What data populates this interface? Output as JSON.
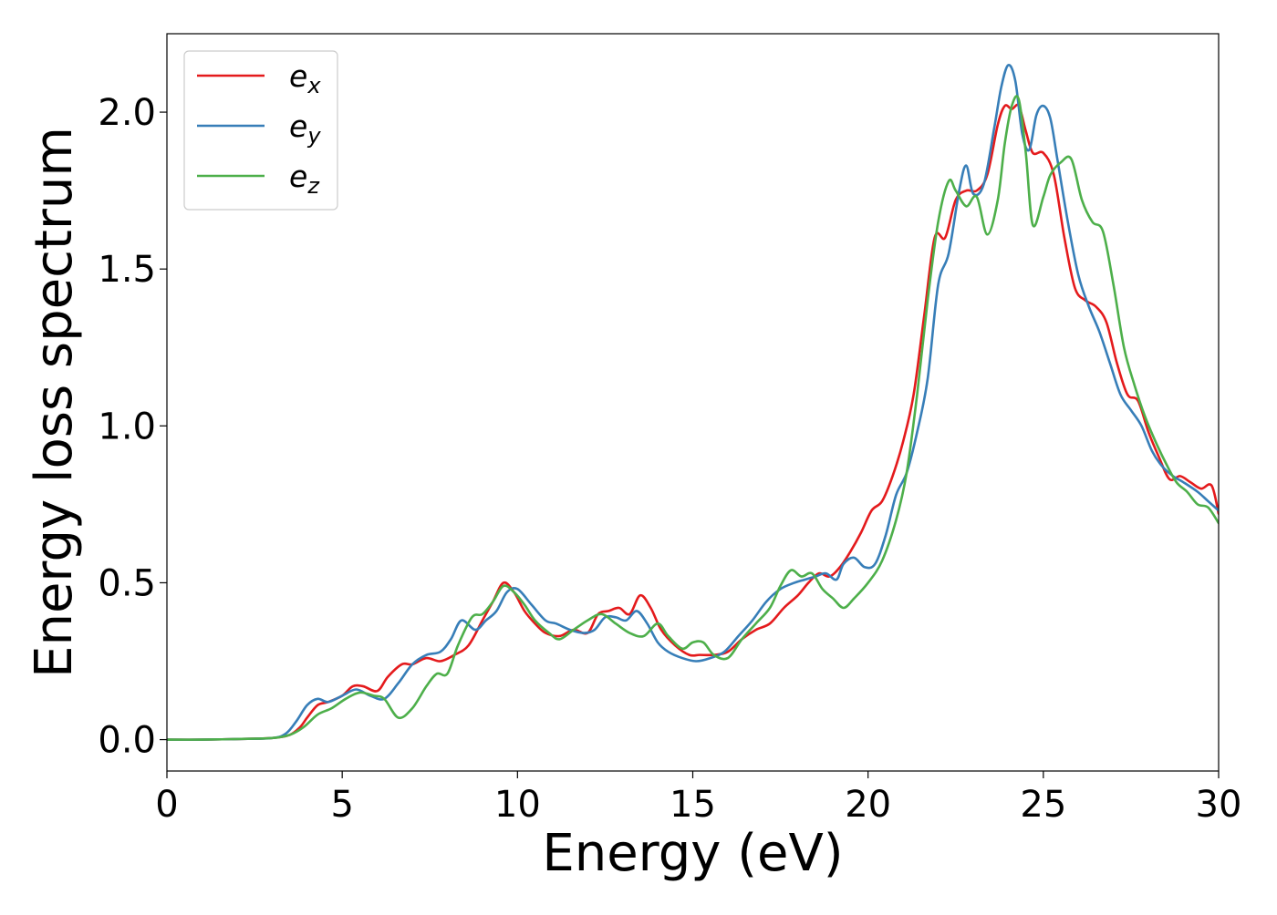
{
  "chart_data": {
    "type": "line",
    "title": "",
    "xlabel": "Energy (eV)",
    "ylabel": "Energy loss spectrum",
    "xlim": [
      0,
      30
    ],
    "ylim": [
      -0.1,
      2.25
    ],
    "xticks": [
      0,
      5,
      10,
      15,
      20,
      25,
      30
    ],
    "xtick_labels": [
      "0",
      "5",
      "10",
      "15",
      "20",
      "25",
      "30"
    ],
    "yticks": [
      0.0,
      0.5,
      1.0,
      1.5,
      2.0
    ],
    "ytick_labels": [
      "0.0",
      "0.5",
      "1.0",
      "1.5",
      "2.0"
    ],
    "grid": false,
    "legend_position": "top-left",
    "series": [
      {
        "name": "e_x",
        "label_base": "e",
        "label_sub": "x",
        "color": "#e41a1c",
        "x": [
          0,
          1,
          2,
          3,
          3.5,
          3.8,
          4.0,
          4.3,
          4.6,
          5.0,
          5.3,
          5.6,
          6.0,
          6.3,
          6.7,
          7.0,
          7.4,
          7.8,
          8.2,
          8.6,
          9.0,
          9.3,
          9.6,
          9.9,
          10.2,
          10.5,
          10.8,
          11.2,
          11.6,
          12.0,
          12.3,
          12.6,
          12.9,
          13.2,
          13.5,
          13.8,
          14.1,
          14.5,
          14.9,
          15.2,
          15.6,
          16.0,
          16.4,
          16.8,
          17.2,
          17.6,
          18.0,
          18.3,
          18.6,
          18.9,
          19.2,
          19.5,
          19.8,
          20.1,
          20.4,
          20.7,
          21.0,
          21.3,
          21.6,
          21.9,
          22.2,
          22.5,
          22.8,
          23.1,
          23.4,
          23.7,
          23.9,
          24.1,
          24.3,
          24.5,
          24.7,
          25.0,
          25.3,
          25.6,
          25.9,
          26.2,
          26.5,
          26.8,
          27.1,
          27.4,
          27.7,
          28.0,
          28.3,
          28.6,
          28.9,
          29.2,
          29.5,
          29.8,
          30.0
        ],
        "y": [
          0.0,
          0.0,
          0.002,
          0.005,
          0.015,
          0.04,
          0.07,
          0.11,
          0.12,
          0.14,
          0.17,
          0.17,
          0.155,
          0.2,
          0.24,
          0.24,
          0.26,
          0.25,
          0.27,
          0.3,
          0.38,
          0.44,
          0.5,
          0.47,
          0.41,
          0.37,
          0.34,
          0.33,
          0.35,
          0.34,
          0.4,
          0.41,
          0.42,
          0.4,
          0.46,
          0.42,
          0.35,
          0.3,
          0.27,
          0.27,
          0.27,
          0.28,
          0.32,
          0.35,
          0.37,
          0.42,
          0.46,
          0.5,
          0.53,
          0.52,
          0.55,
          0.6,
          0.66,
          0.73,
          0.76,
          0.84,
          0.95,
          1.1,
          1.35,
          1.6,
          1.6,
          1.72,
          1.75,
          1.75,
          1.8,
          1.96,
          2.02,
          2.01,
          2.02,
          1.94,
          1.87,
          1.87,
          1.8,
          1.6,
          1.44,
          1.4,
          1.38,
          1.33,
          1.2,
          1.1,
          1.08,
          0.98,
          0.9,
          0.83,
          0.84,
          0.82,
          0.8,
          0.81,
          0.72
        ]
      },
      {
        "name": "e_y",
        "label_base": "e",
        "label_sub": "y",
        "color": "#377eb8",
        "x": [
          0,
          1,
          2,
          3,
          3.4,
          3.7,
          4.0,
          4.3,
          4.6,
          5.0,
          5.4,
          5.8,
          6.2,
          6.6,
          7.0,
          7.4,
          7.8,
          8.1,
          8.4,
          8.8,
          9.1,
          9.4,
          9.7,
          10.0,
          10.4,
          10.8,
          11.1,
          11.5,
          11.9,
          12.2,
          12.5,
          12.8,
          13.1,
          13.4,
          13.7,
          14.0,
          14.3,
          14.7,
          15.1,
          15.5,
          15.9,
          16.3,
          16.7,
          17.1,
          17.5,
          17.9,
          18.2,
          18.5,
          18.8,
          19.1,
          19.3,
          19.6,
          19.9,
          20.2,
          20.5,
          20.8,
          21.1,
          21.4,
          21.7,
          22.0,
          22.3,
          22.6,
          22.8,
          23.0,
          23.3,
          23.6,
          23.8,
          24.0,
          24.2,
          24.4,
          24.6,
          24.8,
          25.0,
          25.2,
          25.4,
          25.7,
          26.0,
          26.3,
          26.6,
          26.9,
          27.2,
          27.5,
          27.8,
          28.1,
          28.4,
          28.7,
          29.0,
          29.4,
          29.7,
          30.0
        ],
        "y": [
          0.0,
          0.0,
          0.002,
          0.005,
          0.02,
          0.06,
          0.11,
          0.13,
          0.12,
          0.14,
          0.16,
          0.14,
          0.13,
          0.18,
          0.24,
          0.27,
          0.28,
          0.32,
          0.38,
          0.35,
          0.38,
          0.41,
          0.47,
          0.48,
          0.43,
          0.38,
          0.37,
          0.35,
          0.34,
          0.35,
          0.39,
          0.39,
          0.38,
          0.41,
          0.37,
          0.31,
          0.28,
          0.26,
          0.25,
          0.26,
          0.28,
          0.33,
          0.38,
          0.44,
          0.48,
          0.5,
          0.51,
          0.52,
          0.53,
          0.51,
          0.56,
          0.58,
          0.55,
          0.56,
          0.65,
          0.78,
          0.85,
          0.98,
          1.15,
          1.45,
          1.55,
          1.75,
          1.83,
          1.74,
          1.77,
          1.95,
          2.08,
          2.15,
          2.1,
          1.93,
          1.88,
          1.99,
          2.02,
          1.98,
          1.85,
          1.65,
          1.48,
          1.38,
          1.3,
          1.2,
          1.1,
          1.05,
          1.0,
          0.92,
          0.87,
          0.84,
          0.82,
          0.79,
          0.76,
          0.73
        ]
      },
      {
        "name": "e_z",
        "label_base": "e",
        "label_sub": "z",
        "color": "#4daf4a",
        "x": [
          0,
          1,
          2,
          3,
          3.5,
          3.9,
          4.3,
          4.7,
          5.1,
          5.5,
          5.9,
          6.2,
          6.6,
          7.0,
          7.4,
          7.7,
          8.0,
          8.3,
          8.7,
          9.0,
          9.3,
          9.6,
          9.9,
          10.2,
          10.5,
          10.9,
          11.2,
          11.6,
          12.0,
          12.4,
          12.8,
          13.2,
          13.6,
          14.0,
          14.3,
          14.7,
          15.0,
          15.3,
          15.6,
          16.0,
          16.4,
          16.8,
          17.2,
          17.5,
          17.8,
          18.1,
          18.4,
          18.7,
          19.0,
          19.3,
          19.6,
          20.0,
          20.4,
          20.8,
          21.1,
          21.4,
          21.7,
          22.0,
          22.3,
          22.5,
          22.8,
          23.1,
          23.4,
          23.7,
          23.9,
          24.1,
          24.3,
          24.5,
          24.7,
          25.0,
          25.2,
          25.5,
          25.8,
          26.1,
          26.4,
          26.7,
          27.0,
          27.3,
          27.6,
          27.9,
          28.2,
          28.5,
          28.8,
          29.1,
          29.4,
          29.7,
          30.0
        ],
        "y": [
          0.0,
          0.0,
          0.002,
          0.005,
          0.015,
          0.04,
          0.08,
          0.1,
          0.13,
          0.15,
          0.14,
          0.13,
          0.07,
          0.1,
          0.17,
          0.21,
          0.21,
          0.3,
          0.39,
          0.4,
          0.44,
          0.49,
          0.47,
          0.43,
          0.38,
          0.34,
          0.32,
          0.35,
          0.38,
          0.4,
          0.37,
          0.34,
          0.33,
          0.37,
          0.33,
          0.29,
          0.31,
          0.31,
          0.27,
          0.26,
          0.32,
          0.37,
          0.42,
          0.49,
          0.54,
          0.52,
          0.53,
          0.48,
          0.45,
          0.42,
          0.45,
          0.5,
          0.57,
          0.7,
          0.85,
          1.1,
          1.4,
          1.65,
          1.78,
          1.75,
          1.7,
          1.73,
          1.61,
          1.72,
          1.9,
          2.02,
          2.04,
          1.87,
          1.64,
          1.73,
          1.8,
          1.84,
          1.85,
          1.72,
          1.65,
          1.62,
          1.45,
          1.25,
          1.13,
          1.03,
          0.95,
          0.88,
          0.82,
          0.79,
          0.75,
          0.74,
          0.69
        ]
      }
    ]
  }
}
